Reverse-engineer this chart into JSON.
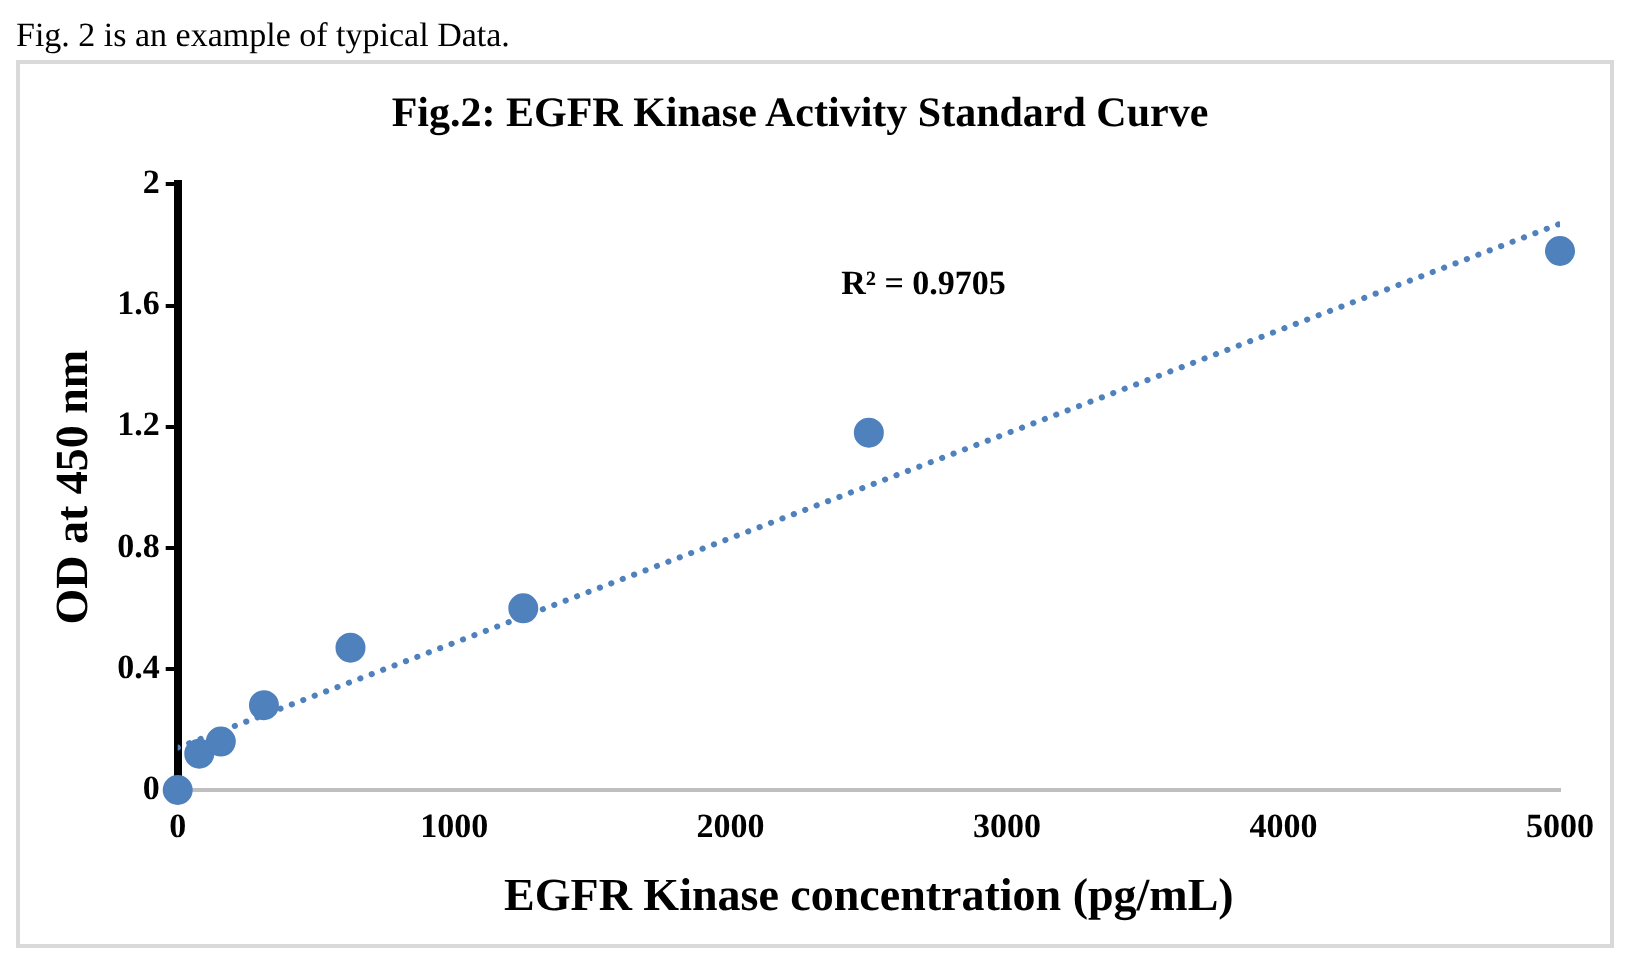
{
  "chart_data": {
    "type": "scatter",
    "title": "Fig.2: EGFR Kinase Activity Standard Curve",
    "xlabel": "EGFR Kinase concentration (pg/mL)",
    "ylabel": "OD at 450 nm",
    "annotations": [
      "Fig. 2 is an example of typical Data.",
      "R² = 0.9705"
    ],
    "x": [
      0,
      78,
      156,
      312,
      625,
      1250,
      2500,
      5000
    ],
    "series": [
      {
        "color": "#4f81bd",
        "marker": "circle",
        "values": [
          0,
          0.12,
          0.16,
          0.28,
          0.47,
          0.6,
          1.18,
          1.78
        ]
      },
      {
        "type": "line",
        "color": "#4f81bd",
        "marker": "none",
        "line_style": "dotted",
        "x": [
          0,
          5000
        ],
        "values": [
          0.14,
          1.87
        ]
      }
    ],
    "xlim": [
      0,
      5000
    ],
    "xticks": [
      0,
      1000,
      2000,
      3000,
      4000,
      5000
    ],
    "ylim": [
      0,
      2
    ],
    "yticks": [
      0,
      0.4,
      0.8,
      1.2,
      1.6,
      2
    ],
    "grid": false,
    "legend": false
  }
}
